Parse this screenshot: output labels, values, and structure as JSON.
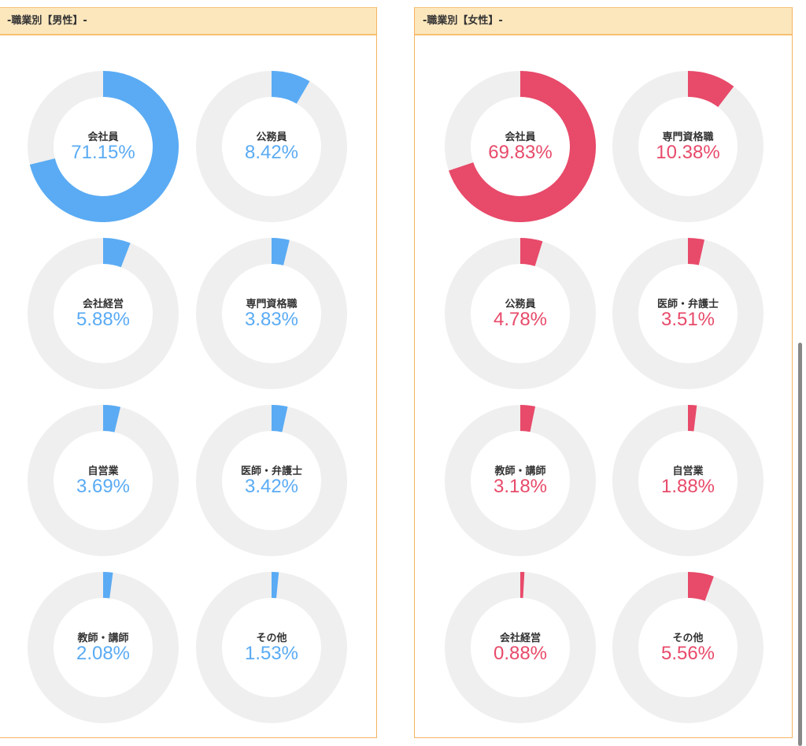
{
  "colors": {
    "male": "#5aabf4",
    "female": "#e84a6a",
    "track": "#efefef"
  },
  "chart_data": [
    {
      "type": "pie",
      "variant": "donut-grid",
      "title": "-職業別【男性】-",
      "series_color": "#5aabf4",
      "items": [
        {
          "label": "会社員",
          "value": 71.15,
          "display": "71.15%"
        },
        {
          "label": "公務員",
          "value": 8.42,
          "display": "8.42%"
        },
        {
          "label": "会社経営",
          "value": 5.88,
          "display": "5.88%"
        },
        {
          "label": "専門資格職",
          "value": 3.83,
          "display": "3.83%"
        },
        {
          "label": "自営業",
          "value": 3.69,
          "display": "3.69%"
        },
        {
          "label": "医師・弁護士",
          "value": 3.42,
          "display": "3.42%"
        },
        {
          "label": "教師・講師",
          "value": 2.08,
          "display": "2.08%"
        },
        {
          "label": "その他",
          "value": 1.53,
          "display": "1.53%"
        }
      ]
    },
    {
      "type": "pie",
      "variant": "donut-grid",
      "title": "-職業別【女性】-",
      "series_color": "#e84a6a",
      "items": [
        {
          "label": "会社員",
          "value": 69.83,
          "display": "69.83%"
        },
        {
          "label": "専門資格職",
          "value": 10.38,
          "display": "10.38%"
        },
        {
          "label": "公務員",
          "value": 4.78,
          "display": "4.78%"
        },
        {
          "label": "医師・弁護士",
          "value": 3.51,
          "display": "3.51%"
        },
        {
          "label": "教師・講師",
          "value": 3.18,
          "display": "3.18%"
        },
        {
          "label": "自営業",
          "value": 1.88,
          "display": "1.88%"
        },
        {
          "label": "会社経営",
          "value": 0.88,
          "display": "0.88%"
        },
        {
          "label": "その他",
          "value": 5.56,
          "display": "5.56%"
        }
      ]
    }
  ]
}
